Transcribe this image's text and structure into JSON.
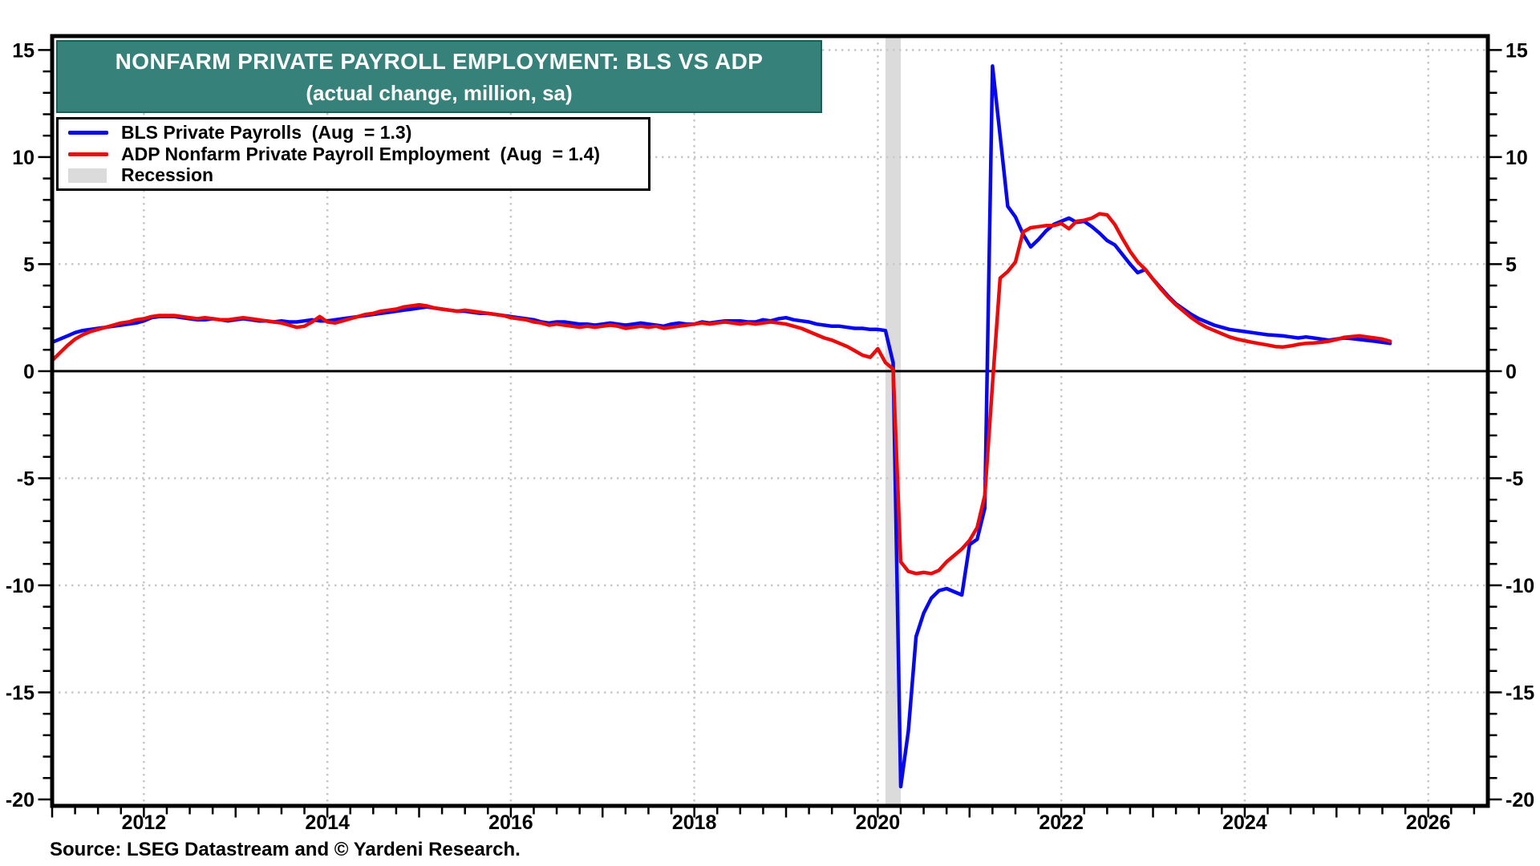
{
  "title": {
    "line1": "NONFARM PRIVATE PAYROLL EMPLOYMENT: BLS VS ADP",
    "line2": "(actual change, million, sa)"
  },
  "source_note": "Source: LSEG Datastream and © Yardeni Research.",
  "colors": {
    "title_bg": "#36827A",
    "title_border": "#1E5C55",
    "title_text": "#FFFFFF",
    "bls_line": "#0808F0",
    "adp_line": "#EC0B0B",
    "recession_band": "#DBDBDB",
    "gridline": "#C8C8C8",
    "axis": "#000000",
    "background": "#FFFFFF"
  },
  "legend": {
    "items": [
      {
        "id": "bls",
        "swatch": "line",
        "color_key": "bls_line",
        "label": "BLS Private Payrolls  (Aug  = 1.3)"
      },
      {
        "id": "adp",
        "swatch": "line",
        "color_key": "adp_line",
        "label": "ADP Nonfarm Private Payroll Employment  (Aug  = 1.4)"
      },
      {
        "id": "recession",
        "swatch": "box",
        "color_key": "recession_band",
        "label": "Recession"
      }
    ]
  },
  "chart_data": {
    "type": "line",
    "title": "NONFARM PRIVATE PAYROLL EMPLOYMENT: BLS VS ADP",
    "subtitle": "(actual change, million, sa)",
    "x_start": 2011.0,
    "x_step_months": 1,
    "x_axis": {
      "range": [
        2011.0,
        2026.65
      ],
      "tick_labels": [
        2012,
        2014,
        2016,
        2018,
        2020,
        2022,
        2024,
        2026
      ],
      "minor_tick_interval_years": 0.25
    },
    "y_axis": {
      "range": [
        -20.3,
        15.65
      ],
      "tick_labels": [
        15,
        10,
        5,
        0,
        -5,
        -10,
        -15,
        -20
      ],
      "minor_tick_interval": 1,
      "sides": "both"
    },
    "grid": {
      "horizontal_at": [
        15,
        10,
        5,
        -5,
        -10,
        -15
      ],
      "vertical_at": [
        2012,
        2014,
        2016,
        2018,
        2020,
        2022,
        2024,
        2026
      ],
      "style": "dotted"
    },
    "zero_line": 0,
    "recession_bands": [
      {
        "start": 2020.083,
        "end": 2020.25
      }
    ],
    "series": [
      {
        "name": "BLS Private Payrolls",
        "latest_label": "Aug = 1.3",
        "color_key": "bls_line",
        "values": [
          1.35,
          1.5,
          1.65,
          1.8,
          1.9,
          1.95,
          2.0,
          2.05,
          2.1,
          2.15,
          2.2,
          2.25,
          2.35,
          2.5,
          2.55,
          2.55,
          2.55,
          2.5,
          2.45,
          2.4,
          2.4,
          2.45,
          2.4,
          2.35,
          2.4,
          2.45,
          2.4,
          2.35,
          2.35,
          2.3,
          2.35,
          2.3,
          2.3,
          2.35,
          2.4,
          2.35,
          2.35,
          2.4,
          2.45,
          2.5,
          2.55,
          2.6,
          2.65,
          2.7,
          2.75,
          2.8,
          2.85,
          2.9,
          2.95,
          3.0,
          2.95,
          2.9,
          2.85,
          2.8,
          2.8,
          2.75,
          2.7,
          2.7,
          2.65,
          2.6,
          2.55,
          2.5,
          2.45,
          2.4,
          2.3,
          2.25,
          2.3,
          2.3,
          2.25,
          2.2,
          2.2,
          2.15,
          2.2,
          2.25,
          2.2,
          2.15,
          2.2,
          2.25,
          2.2,
          2.15,
          2.1,
          2.2,
          2.25,
          2.2,
          2.2,
          2.3,
          2.25,
          2.3,
          2.35,
          2.35,
          2.35,
          2.3,
          2.3,
          2.4,
          2.35,
          2.45,
          2.5,
          2.4,
          2.35,
          2.3,
          2.2,
          2.15,
          2.1,
          2.1,
          2.05,
          2.0,
          2.0,
          1.95,
          1.95,
          1.9,
          0.4,
          -19.4,
          -16.8,
          -12.4,
          -11.3,
          -10.6,
          -10.25,
          -10.15,
          -10.3,
          -10.45,
          -8.1,
          -7.85,
          -6.4,
          14.25,
          11.0,
          7.7,
          7.2,
          6.4,
          5.8,
          6.15,
          6.55,
          6.85,
          7.0,
          7.15,
          6.95,
          7.0,
          6.75,
          6.45,
          6.1,
          5.9,
          5.45,
          5.0,
          4.6,
          4.75,
          4.3,
          3.9,
          3.5,
          3.15,
          2.9,
          2.65,
          2.45,
          2.3,
          2.15,
          2.05,
          1.95,
          1.9,
          1.85,
          1.8,
          1.75,
          1.7,
          1.68,
          1.65,
          1.6,
          1.55,
          1.6,
          1.55,
          1.5,
          1.45,
          1.5,
          1.55,
          1.52,
          1.48,
          1.44,
          1.4,
          1.35,
          1.3
        ]
      },
      {
        "name": "ADP Nonfarm Private Payroll Employment",
        "latest_label": "Aug = 1.4",
        "color_key": "adp_line",
        "values": [
          0.5,
          0.85,
          1.2,
          1.5,
          1.7,
          1.85,
          1.95,
          2.05,
          2.15,
          2.25,
          2.3,
          2.4,
          2.45,
          2.55,
          2.6,
          2.6,
          2.6,
          2.55,
          2.5,
          2.45,
          2.5,
          2.45,
          2.4,
          2.4,
          2.45,
          2.5,
          2.45,
          2.4,
          2.35,
          2.3,
          2.25,
          2.15,
          2.05,
          2.1,
          2.3,
          2.55,
          2.3,
          2.25,
          2.35,
          2.45,
          2.55,
          2.65,
          2.7,
          2.8,
          2.85,
          2.9,
          3.0,
          3.05,
          3.1,
          3.05,
          2.95,
          2.9,
          2.85,
          2.8,
          2.85,
          2.8,
          2.75,
          2.7,
          2.65,
          2.6,
          2.5,
          2.45,
          2.4,
          2.3,
          2.25,
          2.15,
          2.2,
          2.15,
          2.1,
          2.05,
          2.1,
          2.05,
          2.1,
          2.15,
          2.1,
          2.0,
          2.05,
          2.1,
          2.05,
          2.1,
          2.0,
          2.05,
          2.1,
          2.15,
          2.2,
          2.25,
          2.2,
          2.25,
          2.3,
          2.25,
          2.2,
          2.25,
          2.2,
          2.25,
          2.3,
          2.25,
          2.2,
          2.1,
          2.0,
          1.85,
          1.7,
          1.55,
          1.45,
          1.3,
          1.15,
          0.95,
          0.75,
          0.65,
          1.05,
          0.4,
          0.1,
          -8.9,
          -9.35,
          -9.45,
          -9.4,
          -9.45,
          -9.3,
          -8.9,
          -8.6,
          -8.3,
          -7.9,
          -7.3,
          -5.8,
          -0.6,
          4.35,
          4.65,
          5.1,
          6.5,
          6.7,
          6.75,
          6.8,
          6.8,
          6.9,
          6.65,
          7.0,
          7.05,
          7.15,
          7.35,
          7.3,
          6.85,
          6.2,
          5.6,
          5.1,
          4.75,
          4.3,
          3.85,
          3.45,
          3.1,
          2.8,
          2.5,
          2.25,
          2.05,
          1.9,
          1.75,
          1.6,
          1.5,
          1.42,
          1.35,
          1.28,
          1.22,
          1.15,
          1.13,
          1.18,
          1.25,
          1.3,
          1.32,
          1.35,
          1.4,
          1.48,
          1.58,
          1.62,
          1.65,
          1.6,
          1.55,
          1.5,
          1.4
        ]
      }
    ]
  }
}
